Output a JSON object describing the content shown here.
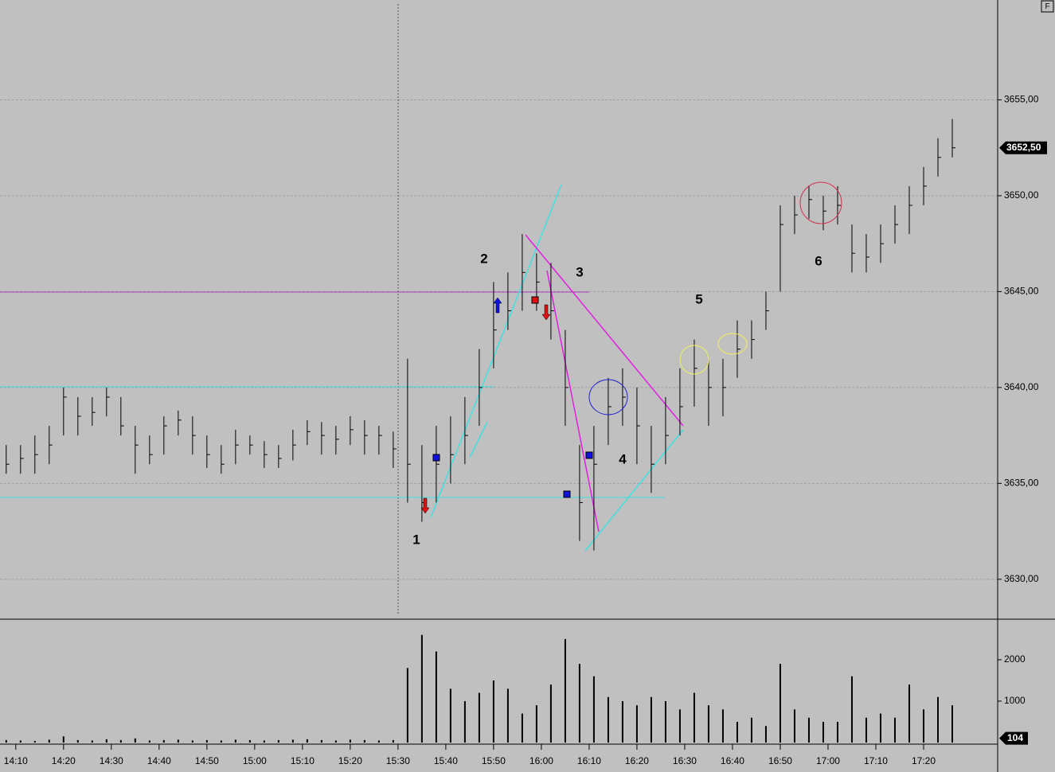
{
  "chart_data": {
    "type": "hlc",
    "xlim": [
      846.7,
      1055.5
    ],
    "ylim": [
      3628,
      3660
    ],
    "xticks": [
      {
        "value": 850,
        "label": "14:10"
      },
      {
        "value": 860,
        "label": "14:20"
      },
      {
        "value": 870,
        "label": "14:30"
      },
      {
        "value": 880,
        "label": "14:40"
      },
      {
        "value": 890,
        "label": "14:50"
      },
      {
        "value": 900,
        "label": "15:00"
      },
      {
        "value": 910,
        "label": "15:10"
      },
      {
        "value": 920,
        "label": "15:20"
      },
      {
        "value": 930,
        "label": "15:30"
      },
      {
        "value": 940,
        "label": "15:40"
      },
      {
        "value": 950,
        "label": "15:50"
      },
      {
        "value": 960,
        "label": "16:00"
      },
      {
        "value": 970,
        "label": "16:10"
      },
      {
        "value": 980,
        "label": "16:20"
      },
      {
        "value": 990,
        "label": "16:30"
      },
      {
        "value": 1000,
        "label": "16:40"
      },
      {
        "value": 1010,
        "label": "16:50"
      },
      {
        "value": 1020,
        "label": "17:00"
      },
      {
        "value": 1030,
        "label": "17:10"
      },
      {
        "value": 1040,
        "label": "17:20"
      }
    ],
    "yticks": [
      {
        "value": 3630,
        "label": "3630,00"
      },
      {
        "value": 3635,
        "label": "3635,00"
      },
      {
        "value": 3640,
        "label": "3640,00"
      },
      {
        "value": 3645,
        "label": "3645,00"
      },
      {
        "value": 3650,
        "label": "3650,00"
      },
      {
        "value": 3655,
        "label": "3655,00"
      }
    ],
    "grid": true,
    "color": "#000000",
    "x": [
      848,
      851,
      854,
      857,
      860,
      863,
      866,
      869,
      872,
      875,
      878,
      881,
      884,
      887,
      890,
      893,
      896,
      899,
      902,
      905,
      908,
      911,
      914,
      917,
      920,
      923,
      926,
      929,
      932,
      935,
      938,
      941,
      944,
      947,
      950,
      953,
      956,
      959,
      962,
      965,
      968,
      971,
      974,
      977,
      980,
      983,
      986,
      989,
      992,
      995,
      998,
      1001,
      1004,
      1007,
      1010,
      1013,
      1016,
      1019,
      1022,
      1025,
      1028,
      1031,
      1034,
      1037,
      1040,
      1043,
      1046
    ],
    "high": [
      3637,
      3637,
      3637.5,
      3638,
      3640,
      3639.5,
      3639.5,
      3640,
      3639.5,
      3638,
      3637.5,
      3638.5,
      3638.8,
      3638.5,
      3637.5,
      3637,
      3637.8,
      3637.5,
      3637.2,
      3637,
      3637.8,
      3638.3,
      3638.2,
      3638,
      3638.5,
      3638.3,
      3638,
      3637.7,
      3641.5,
      3637,
      3638,
      3638.5,
      3639.5,
      3642,
      3645.5,
      3646,
      3648,
      3647,
      3646.5,
      3643,
      3637,
      3638,
      3640.5,
      3641,
      3640,
      3638,
      3639.5,
      3641,
      3642.5,
      3641.5,
      3641.5,
      3643.5,
      3643.5,
      3645,
      3649.5,
      3650,
      3650.5,
      3650,
      3650.5,
      3648.5,
      3648,
      3648.5,
      3649.5,
      3650.5,
      3651.5,
      3653,
      3654
    ],
    "low": [
      3635.5,
      3635.5,
      3635.5,
      3636,
      3637.5,
      3637.5,
      3638,
      3638.5,
      3637.5,
      3635.5,
      3636,
      3636.5,
      3637.5,
      3636.5,
      3635.8,
      3635.5,
      3636,
      3636.5,
      3635.8,
      3635.8,
      3636.2,
      3637,
      3636.5,
      3636.5,
      3637,
      3636.5,
      3636.5,
      3635.8,
      3634,
      3633,
      3634,
      3635,
      3636,
      3638,
      3641,
      3643,
      3644,
      3644,
      3642.5,
      3638,
      3632,
      3631.5,
      3637,
      3638,
      3636,
      3634.5,
      3636,
      3637.5,
      3639,
      3638,
      3638.5,
      3640.5,
      3641.5,
      3643,
      3645,
      3648,
      3648.8,
      3648.2,
      3648.5,
      3646,
      3646,
      3646.5,
      3647.5,
      3648,
      3649.5,
      3651,
      3652
    ],
    "close": [
      3636,
      3636.3,
      3636.5,
      3637,
      3639.5,
      3638.5,
      3638.7,
      3639.5,
      3638,
      3637,
      3636.5,
      3638,
      3638.3,
      3637.5,
      3636.5,
      3636,
      3637,
      3637,
      3636.5,
      3636.3,
      3637,
      3637.7,
      3637.5,
      3637.3,
      3637.8,
      3637.5,
      3637.5,
      3636.8,
      3636,
      3634,
      3636,
      3636.5,
      3637.5,
      3640,
      3643,
      3644,
      3646,
      3645.5,
      3644,
      3640,
      3634,
      3636,
      3639,
      3639.5,
      3638,
      3636,
      3637.5,
      3639,
      3641,
      3640,
      3640,
      3642,
      3642.5,
      3644,
      3648.5,
      3649,
      3649.8,
      3649.2,
      3649.5,
      3647,
      3646.8,
      3647.5,
      3648.5,
      3649.5,
      3650.5,
      3652,
      3652.5
    ],
    "last_price": {
      "value": 3652.5,
      "label": "3652,50"
    },
    "volume": {
      "ylim": [
        0,
        2960
      ],
      "yticks": [
        1000,
        2000
      ],
      "color": "#000000",
      "values": [
        60,
        50,
        40,
        70,
        150,
        60,
        50,
        80,
        60,
        100,
        50,
        60,
        70,
        50,
        60,
        50,
        70,
        60,
        50,
        60,
        70,
        80,
        60,
        50,
        70,
        60,
        50,
        60,
        1800,
        2600,
        2200,
        1300,
        1000,
        1200,
        1500,
        1300,
        700,
        900,
        1400,
        2500,
        1900,
        1600,
        1100,
        1000,
        900,
        1100,
        1000,
        800,
        1200,
        900,
        800,
        500,
        600,
        400,
        1900,
        800,
        600,
        500,
        500,
        1600,
        600,
        700,
        600,
        1400,
        800,
        1100,
        900
      ],
      "last_label": 104
    },
    "annotations": [
      "1",
      "2",
      "3",
      "4",
      "5",
      "6"
    ],
    "button": "F"
  }
}
